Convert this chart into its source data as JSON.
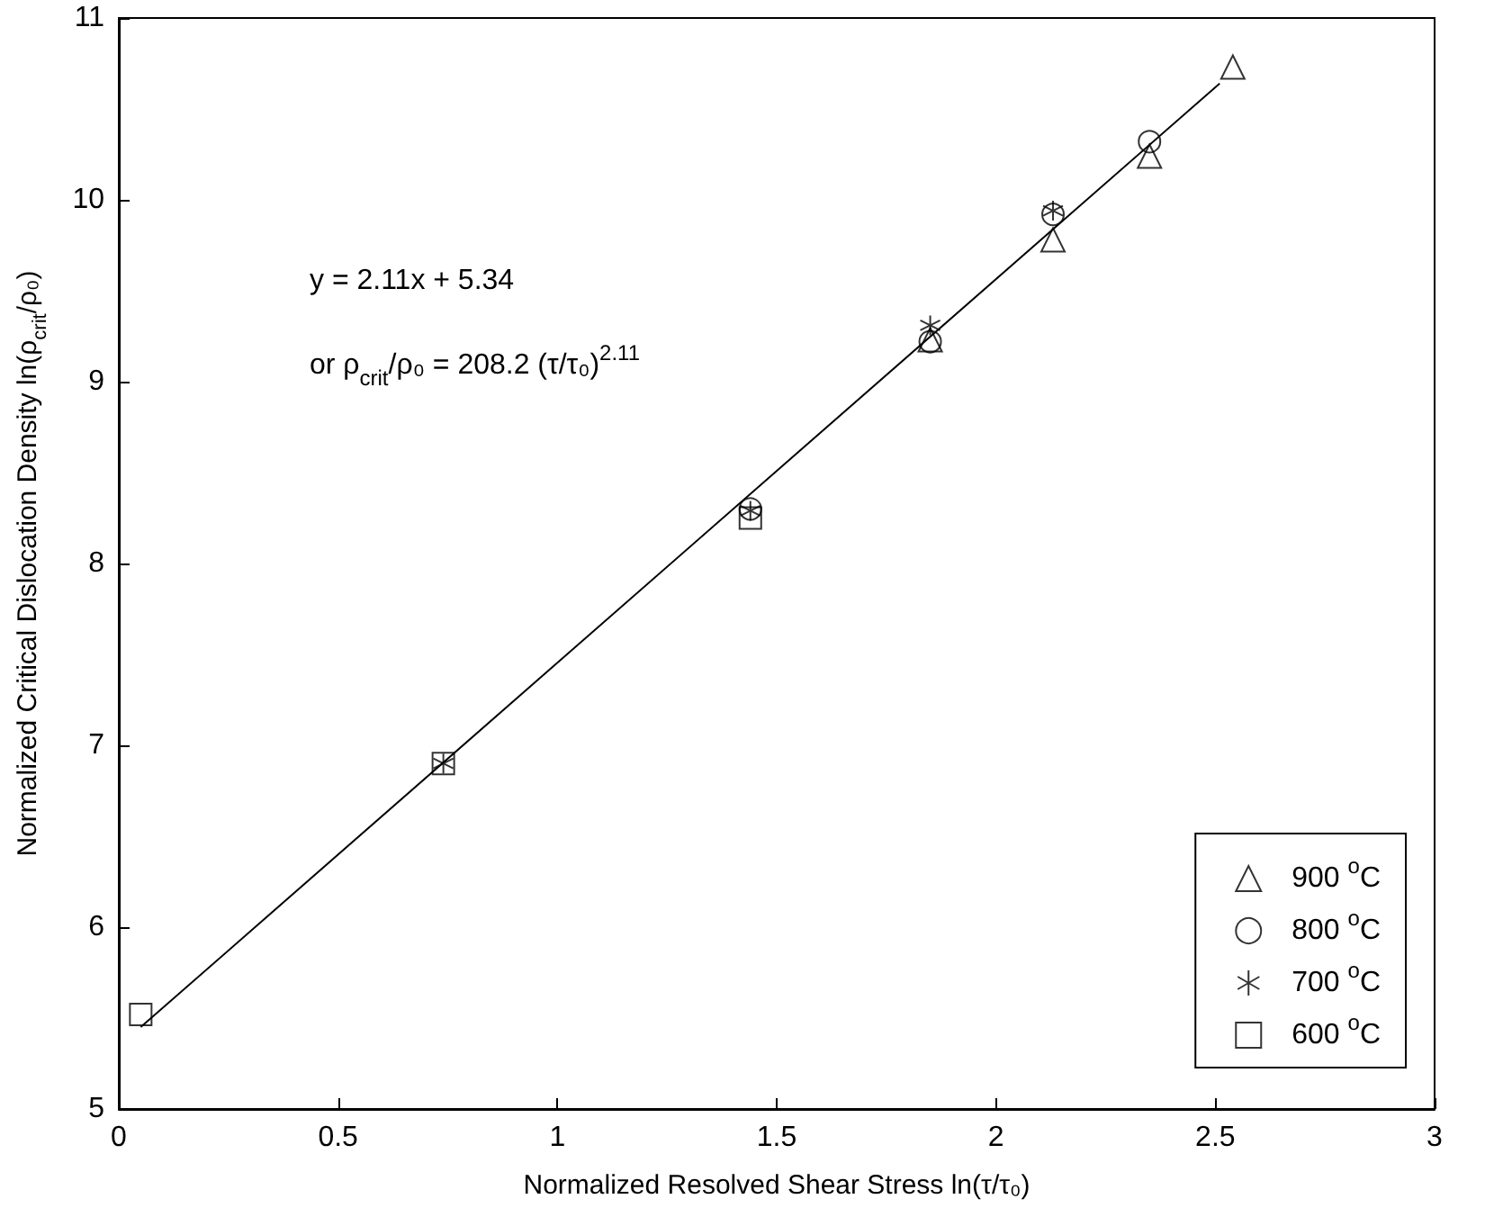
{
  "chart_data": {
    "type": "scatter",
    "xlabel": "Normalized Resolved Shear Stress ln(τ/τ₀)",
    "ylabel": "Normalized Critical Dislocation Density ln(ρ$_{crit}$/ρ₀)",
    "annotations": [
      "y = 2.11x + 5.34",
      "or ρ$_{crit}$/ρ₀ = 208.2 (τ/τ₀)$^{2.11}$"
    ],
    "xlim": [
      0,
      3
    ],
    "xticks": [
      0,
      0.5,
      1,
      1.5,
      2,
      2.5,
      3
    ],
    "ylim": [
      5,
      11
    ],
    "yticks": [
      5,
      6,
      7,
      8,
      9,
      10,
      11
    ],
    "grid": false,
    "legend": "bottom right",
    "series": [
      {
        "name": "900 $^{o}$C",
        "color": "#000000",
        "marker": "triangle",
        "x": [
          1.85,
          2.13,
          2.35,
          2.54
        ],
        "values": [
          9.23,
          9.78,
          10.24,
          10.73
        ]
      },
      {
        "name": "800 $^{o}$C",
        "color": "#000000",
        "marker": "circle",
        "x": [
          1.44,
          1.85,
          2.13,
          2.35
        ],
        "values": [
          8.3,
          9.22,
          9.92,
          10.32
        ]
      },
      {
        "name": "700 $^{o}$C",
        "color": "#000000",
        "marker": "cross",
        "x": [
          0.74,
          1.44,
          1.85,
          2.13
        ],
        "values": [
          6.9,
          8.29,
          9.31,
          9.94
        ]
      },
      {
        "name": "600 $^{o}$C",
        "color": "#000000",
        "marker": "square",
        "x": [
          0.05,
          0.74,
          1.44
        ],
        "values": [
          5.52,
          6.9,
          8.25
        ]
      },
      {
        "type": "line",
        "color": "#000000",
        "marker": "none",
        "line_style": "solid",
        "x": [
          0.05,
          2.51
        ],
        "values": [
          5.45,
          10.64
        ]
      }
    ]
  }
}
